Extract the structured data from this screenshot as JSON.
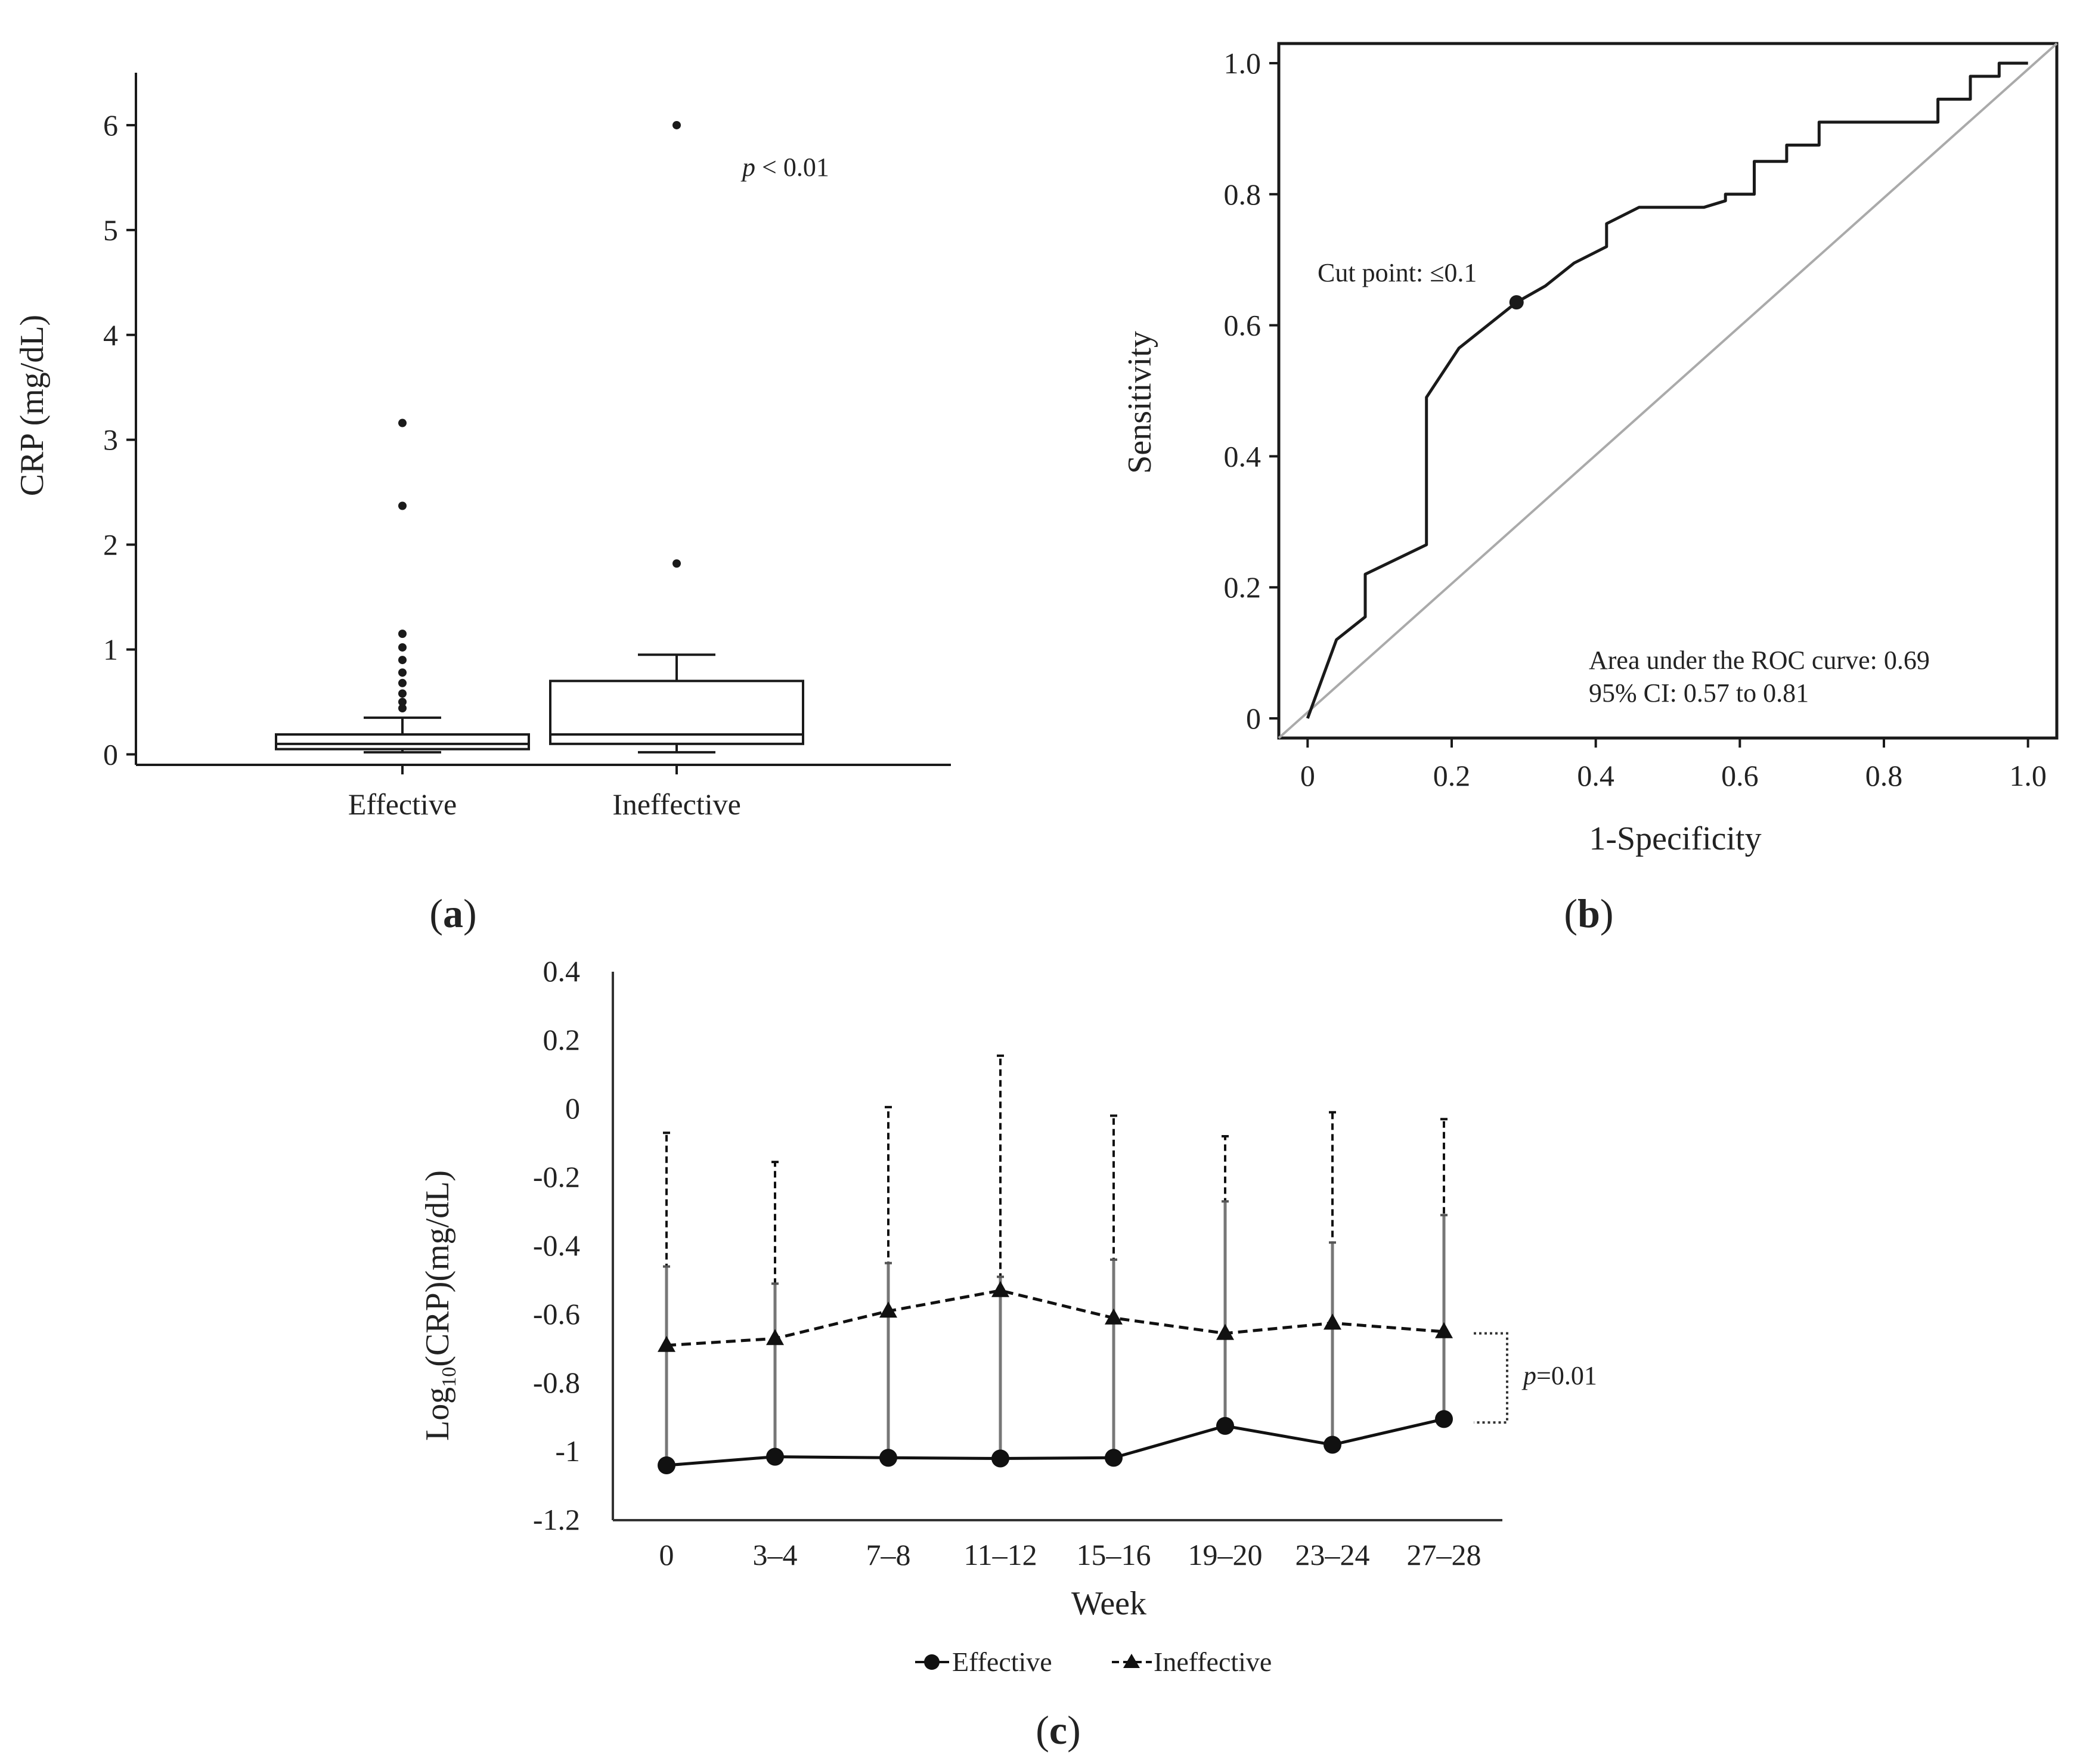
{
  "chart_data": [
    {
      "id": "a",
      "type": "box",
      "panel_label_open": "(",
      "panel_label_letter": "a",
      "panel_label_close": ")",
      "ylabel": "CRP (mg/dL)",
      "ylim": [
        -0.1,
        6.5
      ],
      "yticks": [
        "0",
        "1",
        "2",
        "3",
        "4",
        "5",
        "6"
      ],
      "p_italic": "p",
      "p_rest": " < 0.01",
      "groups": [
        {
          "name": "Effective",
          "whisker_low": 0.02,
          "q1": 0.05,
          "median": 0.1,
          "q3": 0.19,
          "whisker_high": 0.35,
          "outliers": [
            0.44,
            0.5,
            0.58,
            0.68,
            0.78,
            0.9,
            1.02,
            1.15,
            2.37,
            3.16
          ]
        },
        {
          "name": "Ineffective",
          "whisker_low": 0.02,
          "q1": 0.1,
          "median": 0.19,
          "q3": 0.7,
          "whisker_high": 0.95,
          "outliers": [
            1.82,
            6.0
          ]
        }
      ]
    },
    {
      "id": "b",
      "type": "line",
      "panel_label_open": "(",
      "panel_label_letter": "b",
      "panel_label_close": ")",
      "xlabel": "1-Specificity",
      "ylabel": "Sensitivity",
      "xlim": [
        -0.04,
        1.04
      ],
      "ylim": [
        -0.03,
        1.03
      ],
      "xticks": [
        "0",
        "0.2",
        "0.4",
        "0.6",
        "0.8",
        "1.0"
      ],
      "yticks": [
        "0",
        "0.2",
        "0.4",
        "0.6",
        "0.8",
        "1.0"
      ],
      "roc_points": [
        [
          0,
          0
        ],
        [
          0.04,
          0.12
        ],
        [
          0.08,
          0.155
        ],
        [
          0.08,
          0.22
        ],
        [
          0.165,
          0.265
        ],
        [
          0.165,
          0.49
        ],
        [
          0.21,
          0.565
        ],
        [
          0.29,
          0.635
        ],
        [
          0.33,
          0.66
        ],
        [
          0.37,
          0.695
        ],
        [
          0.415,
          0.72
        ],
        [
          0.415,
          0.755
        ],
        [
          0.46,
          0.78
        ],
        [
          0.55,
          0.78
        ],
        [
          0.58,
          0.79
        ],
        [
          0.58,
          0.8
        ],
        [
          0.62,
          0.8
        ],
        [
          0.62,
          0.85
        ],
        [
          0.665,
          0.85
        ],
        [
          0.665,
          0.875
        ],
        [
          0.71,
          0.875
        ],
        [
          0.71,
          0.91
        ],
        [
          0.875,
          0.91
        ],
        [
          0.875,
          0.945
        ],
        [
          0.92,
          0.945
        ],
        [
          0.92,
          0.98
        ],
        [
          0.96,
          0.98
        ],
        [
          0.96,
          1.0
        ],
        [
          1.0,
          1.0
        ]
      ],
      "reference_line": [
        [
          0,
          0
        ],
        [
          1,
          1
        ]
      ],
      "cut_point": [
        0.29,
        0.635
      ],
      "cut_label": "Cut point: ≤0.1",
      "auc_text": "Area under the ROC curve: 0.69",
      "ci_text": "95% CI: 0.57 to 0.81"
    },
    {
      "id": "c",
      "type": "line",
      "panel_label_open": "(",
      "panel_label_letter": "c",
      "panel_label_close": ")",
      "xlabel": "Week",
      "ylabel_prefix": "Log",
      "ylabel_sub": "10",
      "ylabel_suffix": "(CRP)(mg/dL)",
      "ylim": [
        -1.2,
        0.4
      ],
      "yticks": [
        "0.4",
        "0.2",
        "0",
        "-0.2",
        "-0.4",
        "-0.6",
        "-0.8",
        "-1",
        "-1.2"
      ],
      "categories": [
        "0",
        "3–4",
        "7–8",
        "11–12",
        "15–16",
        "19–20",
        "23–24",
        "27–28"
      ],
      "series": [
        {
          "name": "Effective",
          "marker": "circle",
          "line": "solid",
          "values": [
            -1.04,
            -1.015,
            -1.018,
            -1.02,
            -1.018,
            -0.925,
            -0.98,
            -0.905
          ],
          "error_upper": [
            -0.46,
            -0.51,
            -0.45,
            -0.49,
            -0.44,
            -0.27,
            -0.39,
            -0.31
          ]
        },
        {
          "name": "Ineffective",
          "marker": "triangle",
          "line": "dashed",
          "values": [
            -0.69,
            -0.67,
            -0.59,
            -0.53,
            -0.61,
            -0.655,
            -0.625,
            -0.65
          ],
          "error_upper": [
            -0.07,
            -0.155,
            0.005,
            0.155,
            -0.02,
            -0.08,
            -0.01,
            -0.03
          ]
        }
      ],
      "p_italic": "p",
      "p_rest": "=0.01",
      "bracket_range": [
        -0.655,
        -0.915
      ]
    }
  ]
}
